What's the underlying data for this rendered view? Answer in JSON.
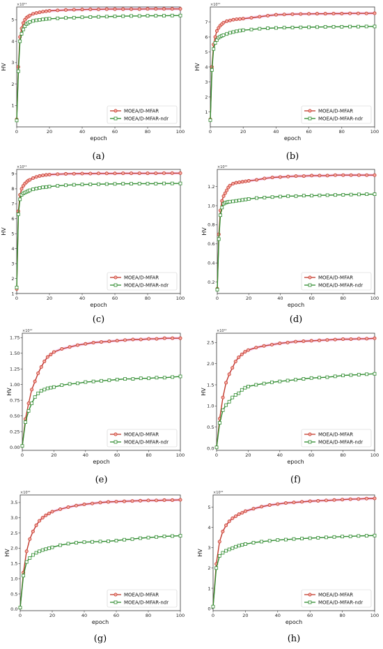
{
  "legend": {
    "mfar": "MOEA/D-MFAR",
    "ndr": "MOEA/D-MFAR-ndr"
  },
  "colors": {
    "mfar": "#c0392b",
    "mfar_fill": "#f7a8a0",
    "mfar_band": "#f4c6ef",
    "ndr": "#2e8b2e",
    "ndr_fill": "#ffffff"
  },
  "chart_data": [
    {
      "type": "line",
      "caption": "(a)",
      "xlabel": "epoch",
      "ylabel": "HV",
      "exponent": "×10¹¹",
      "xlim": [
        0,
        100
      ],
      "ylim": [
        0,
        5.6
      ],
      "xticks": [
        0,
        20,
        40,
        60,
        80,
        100
      ],
      "yticks": [
        1,
        2,
        3,
        4,
        5
      ],
      "x": [
        0,
        1,
        2,
        3,
        4,
        5,
        6,
        7,
        8,
        10,
        12,
        14,
        16,
        18,
        20,
        25,
        30,
        35,
        40,
        45,
        50,
        55,
        60,
        65,
        70,
        75,
        80,
        85,
        90,
        95,
        100
      ],
      "series": [
        {
          "name": "MOEA/D-MFAR",
          "values": [
            0.35,
            2.8,
            4.2,
            4.6,
            4.85,
            5.0,
            5.1,
            5.15,
            5.2,
            5.28,
            5.32,
            5.35,
            5.38,
            5.4,
            5.42,
            5.44,
            5.46,
            5.47,
            5.48,
            5.49,
            5.49,
            5.5,
            5.5,
            5.5,
            5.5,
            5.5,
            5.51,
            5.51,
            5.51,
            5.51,
            5.51
          ]
        },
        {
          "name": "MOEA/D-MFAR-ndr",
          "values": [
            0.3,
            2.6,
            4.0,
            4.35,
            4.55,
            4.7,
            4.8,
            4.85,
            4.9,
            4.95,
            4.98,
            5.0,
            5.02,
            5.04,
            5.05,
            5.07,
            5.09,
            5.1,
            5.12,
            5.13,
            5.14,
            5.15,
            5.16,
            5.17,
            5.18,
            5.18,
            5.19,
            5.19,
            5.19,
            5.2,
            5.2
          ]
        }
      ]
    },
    {
      "type": "line",
      "caption": "(b)",
      "xlabel": "epoch",
      "ylabel": "HV",
      "exponent": "×10¹¹",
      "xlim": [
        0,
        100
      ],
      "ylim": [
        0,
        8.0
      ],
      "xticks": [
        0,
        20,
        40,
        60,
        80,
        100
      ],
      "yticks": [
        1,
        2,
        3,
        4,
        5,
        6,
        7
      ],
      "x": [
        0,
        1,
        2,
        3,
        4,
        5,
        6,
        7,
        8,
        10,
        12,
        14,
        16,
        18,
        20,
        25,
        30,
        35,
        40,
        45,
        50,
        55,
        60,
        65,
        70,
        75,
        80,
        85,
        90,
        95,
        100
      ],
      "series": [
        {
          "name": "MOEA/D-MFAR",
          "values": [
            0.5,
            4.0,
            5.5,
            6.0,
            6.4,
            6.6,
            6.75,
            6.85,
            6.95,
            7.05,
            7.1,
            7.15,
            7.18,
            7.2,
            7.22,
            7.28,
            7.35,
            7.42,
            7.48,
            7.5,
            7.52,
            7.53,
            7.54,
            7.55,
            7.55,
            7.56,
            7.56,
            7.57,
            7.57,
            7.57,
            7.58
          ]
        },
        {
          "name": "MOEA/D-MFAR-ndr",
          "values": [
            0.45,
            3.8,
            5.2,
            5.6,
            5.8,
            5.95,
            6.02,
            6.08,
            6.12,
            6.2,
            6.28,
            6.33,
            6.38,
            6.42,
            6.45,
            6.5,
            6.55,
            6.58,
            6.6,
            6.62,
            6.63,
            6.64,
            6.65,
            6.66,
            6.67,
            6.68,
            6.68,
            6.69,
            6.69,
            6.7,
            6.7
          ]
        }
      ]
    },
    {
      "type": "line",
      "caption": "(c)",
      "xlabel": "epoch",
      "ylabel": "HV",
      "exponent": "×10¹¹",
      "xlim": [
        0,
        100
      ],
      "ylim": [
        1,
        9.3
      ],
      "xticks": [
        0,
        20,
        40,
        60,
        80,
        100
      ],
      "yticks": [
        1,
        2,
        3,
        4,
        5,
        6,
        7,
        8,
        9
      ],
      "x": [
        0,
        1,
        2,
        3,
        4,
        5,
        6,
        7,
        8,
        10,
        12,
        14,
        16,
        18,
        20,
        25,
        30,
        35,
        40,
        45,
        50,
        55,
        60,
        65,
        70,
        75,
        80,
        85,
        90,
        95,
        100
      ],
      "series": [
        {
          "name": "MOEA/D-MFAR",
          "values": [
            1.3,
            6.5,
            7.6,
            8.0,
            8.2,
            8.35,
            8.45,
            8.55,
            8.6,
            8.72,
            8.8,
            8.86,
            8.9,
            8.93,
            8.95,
            8.98,
            9.0,
            9.01,
            9.02,
            9.02,
            9.03,
            9.03,
            9.03,
            9.04,
            9.04,
            9.04,
            9.04,
            9.04,
            9.05,
            9.05,
            9.05
          ]
        },
        {
          "name": "MOEA/D-MFAR-ndr",
          "values": [
            1.4,
            6.3,
            7.3,
            7.6,
            7.7,
            7.75,
            7.8,
            7.85,
            7.9,
            7.97,
            8.02,
            8.06,
            8.1,
            8.12,
            8.15,
            8.2,
            8.24,
            8.27,
            8.29,
            8.3,
            8.31,
            8.32,
            8.33,
            8.34,
            8.34,
            8.35,
            8.35,
            8.35,
            8.36,
            8.36,
            8.36
          ]
        }
      ]
    },
    {
      "type": "line",
      "caption": "(d)",
      "xlabel": "epoch",
      "ylabel": "HV",
      "exponent": "×10¹²",
      "xlim": [
        0,
        100
      ],
      "ylim": [
        0.08,
        1.38
      ],
      "xticks": [
        0,
        20,
        40,
        60,
        80,
        100
      ],
      "yticks": [
        0.2,
        0.4,
        0.6,
        0.8,
        1.0,
        1.2
      ],
      "ytick_labels": [
        "0.2",
        "0.4",
        "0.6",
        "0.8",
        "1.0",
        "1.2"
      ],
      "x": [
        0,
        1,
        2,
        3,
        4,
        5,
        6,
        7,
        8,
        10,
        12,
        14,
        16,
        18,
        20,
        25,
        30,
        35,
        40,
        45,
        50,
        55,
        60,
        65,
        70,
        75,
        80,
        85,
        90,
        95,
        100
      ],
      "series": [
        {
          "name": "MOEA/D-MFAR",
          "values": [
            0.13,
            0.7,
            0.95,
            1.05,
            1.1,
            1.13,
            1.16,
            1.19,
            1.21,
            1.23,
            1.24,
            1.245,
            1.25,
            1.255,
            1.26,
            1.27,
            1.285,
            1.295,
            1.3,
            1.305,
            1.31,
            1.31,
            1.315,
            1.315,
            1.315,
            1.32,
            1.32,
            1.32,
            1.32,
            1.32,
            1.32
          ]
        },
        {
          "name": "MOEA/D-MFAR-ndr",
          "values": [
            0.12,
            0.65,
            0.9,
            0.98,
            1.02,
            1.03,
            1.035,
            1.04,
            1.042,
            1.045,
            1.05,
            1.055,
            1.06,
            1.065,
            1.07,
            1.08,
            1.085,
            1.09,
            1.095,
            1.1,
            1.1,
            1.105,
            1.105,
            1.108,
            1.11,
            1.112,
            1.114,
            1.116,
            1.118,
            1.12,
            1.12
          ]
        }
      ]
    },
    {
      "type": "line",
      "caption": "(e)",
      "xlabel": "epoch",
      "ylabel": "HV",
      "exponent": "×10¹²",
      "xlim": [
        0,
        100
      ],
      "ylim": [
        -0.05,
        1.82
      ],
      "xticks": [
        0,
        20,
        40,
        60,
        80,
        100
      ],
      "yticks": [
        0,
        0.25,
        0.5,
        0.75,
        1.0,
        1.25,
        1.5,
        1.75
      ],
      "ytick_labels": [
        "0.00",
        "0.25",
        "0.50",
        "0.75",
        "1.00",
        "1.25",
        "1.50",
        "1.75"
      ],
      "x": [
        0,
        2,
        4,
        6,
        8,
        10,
        12,
        14,
        16,
        18,
        20,
        25,
        30,
        35,
        40,
        45,
        50,
        55,
        60,
        65,
        70,
        75,
        80,
        85,
        90,
        95,
        100
      ],
      "series": [
        {
          "name": "MOEA/D-MFAR",
          "values": [
            0.02,
            0.45,
            0.7,
            0.92,
            1.05,
            1.18,
            1.28,
            1.37,
            1.44,
            1.48,
            1.52,
            1.57,
            1.6,
            1.63,
            1.65,
            1.67,
            1.68,
            1.69,
            1.7,
            1.71,
            1.72,
            1.72,
            1.73,
            1.73,
            1.74,
            1.74,
            1.74
          ]
        },
        {
          "name": "MOEA/D-MFAR-ndr",
          "values": [
            0.02,
            0.4,
            0.58,
            0.7,
            0.8,
            0.86,
            0.9,
            0.92,
            0.94,
            0.95,
            0.96,
            0.99,
            1.01,
            1.02,
            1.04,
            1.05,
            1.06,
            1.07,
            1.08,
            1.09,
            1.09,
            1.1,
            1.1,
            1.11,
            1.11,
            1.12,
            1.13
          ]
        }
      ]
    },
    {
      "type": "line",
      "caption": "(f)",
      "xlabel": "epoch",
      "ylabel": "HV",
      "exponent": "×10¹²",
      "xlim": [
        0,
        100
      ],
      "ylim": [
        -0.05,
        2.72
      ],
      "xticks": [
        0,
        20,
        40,
        60,
        80,
        100
      ],
      "yticks": [
        0,
        0.5,
        1.0,
        1.5,
        2.0,
        2.5
      ],
      "ytick_labels": [
        "0.0",
        "0.5",
        "1.0",
        "1.5",
        "2.0",
        "2.5"
      ],
      "x": [
        0,
        2,
        4,
        6,
        8,
        10,
        12,
        14,
        16,
        18,
        20,
        25,
        30,
        35,
        40,
        45,
        50,
        55,
        60,
        65,
        70,
        75,
        80,
        85,
        90,
        95,
        100
      ],
      "series": [
        {
          "name": "MOEA/D-MFAR",
          "values": [
            0.02,
            0.7,
            1.2,
            1.55,
            1.75,
            1.9,
            2.05,
            2.15,
            2.22,
            2.28,
            2.32,
            2.38,
            2.42,
            2.45,
            2.48,
            2.5,
            2.52,
            2.53,
            2.54,
            2.55,
            2.56,
            2.57,
            2.58,
            2.58,
            2.59,
            2.59,
            2.6
          ]
        },
        {
          "name": "MOEA/D-MFAR-ndr",
          "values": [
            0.02,
            0.6,
            0.9,
            1.02,
            1.1,
            1.2,
            1.26,
            1.3,
            1.38,
            1.43,
            1.46,
            1.5,
            1.53,
            1.56,
            1.58,
            1.6,
            1.62,
            1.64,
            1.66,
            1.67,
            1.68,
            1.7,
            1.72,
            1.73,
            1.74,
            1.75,
            1.76
          ]
        }
      ]
    },
    {
      "type": "line",
      "caption": "(g)",
      "xlabel": "epoch",
      "ylabel": "HV",
      "exponent": "×10¹²",
      "xlim": [
        0,
        100
      ],
      "ylim": [
        -0.05,
        3.75
      ],
      "xticks": [
        0,
        20,
        40,
        60,
        80,
        100
      ],
      "yticks": [
        0,
        0.5,
        1.0,
        1.5,
        2.0,
        2.5,
        3.0,
        3.5
      ],
      "ytick_labels": [
        "0.0",
        "0.5",
        "1.0",
        "1.5",
        "2.0",
        "2.5",
        "3.0",
        "3.5"
      ],
      "x": [
        0,
        2,
        4,
        6,
        8,
        10,
        12,
        14,
        16,
        18,
        20,
        25,
        30,
        35,
        40,
        45,
        50,
        55,
        60,
        65,
        70,
        75,
        80,
        85,
        90,
        95,
        100
      ],
      "series": [
        {
          "name": "MOEA/D-MFAR",
          "values": [
            0.05,
            1.2,
            1.9,
            2.3,
            2.55,
            2.75,
            2.9,
            3.0,
            3.08,
            3.14,
            3.2,
            3.28,
            3.35,
            3.4,
            3.44,
            3.47,
            3.5,
            3.52,
            3.53,
            3.54,
            3.55,
            3.56,
            3.57,
            3.57,
            3.58,
            3.58,
            3.59
          ]
        },
        {
          "name": "MOEA/D-MFAR-ndr",
          "values": [
            0.05,
            1.1,
            1.55,
            1.68,
            1.78,
            1.85,
            1.9,
            1.94,
            1.97,
            2.0,
            2.03,
            2.1,
            2.15,
            2.18,
            2.2,
            2.21,
            2.22,
            2.23,
            2.25,
            2.28,
            2.3,
            2.33,
            2.35,
            2.37,
            2.39,
            2.4,
            2.41
          ]
        }
      ]
    },
    {
      "type": "line",
      "caption": "(h)",
      "xlabel": "epoch",
      "ylabel": "HV",
      "exponent": "×10¹²",
      "xlim": [
        0,
        100
      ],
      "ylim": [
        -0.1,
        5.6
      ],
      "xticks": [
        0,
        20,
        40,
        60,
        80,
        100
      ],
      "yticks": [
        0,
        1,
        2,
        3,
        4,
        5
      ],
      "x": [
        0,
        2,
        4,
        6,
        8,
        10,
        12,
        14,
        16,
        18,
        20,
        25,
        30,
        35,
        40,
        45,
        50,
        55,
        60,
        65,
        70,
        75,
        80,
        85,
        90,
        95,
        100
      ],
      "series": [
        {
          "name": "MOEA/D-MFAR",
          "values": [
            0.1,
            2.2,
            3.3,
            3.8,
            4.1,
            4.3,
            4.45,
            4.55,
            4.65,
            4.72,
            4.8,
            4.92,
            5.02,
            5.1,
            5.15,
            5.2,
            5.23,
            5.26,
            5.29,
            5.31,
            5.33,
            5.35,
            5.37,
            5.39,
            5.4,
            5.42,
            5.43
          ]
        },
        {
          "name": "MOEA/D-MFAR-ndr",
          "values": [
            0.1,
            2.0,
            2.6,
            2.75,
            2.85,
            2.92,
            2.98,
            3.05,
            3.1,
            3.14,
            3.18,
            3.25,
            3.3,
            3.34,
            3.38,
            3.4,
            3.43,
            3.45,
            3.47,
            3.49,
            3.51,
            3.53,
            3.55,
            3.56,
            3.58,
            3.59,
            3.6
          ]
        }
      ]
    }
  ]
}
